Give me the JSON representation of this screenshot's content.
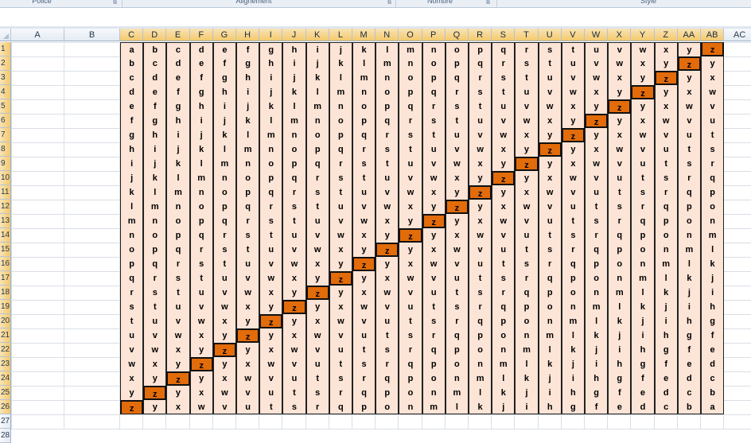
{
  "ribbon": {
    "groups": [
      {
        "label": "Police"
      },
      {
        "label": "Alignement"
      },
      {
        "label": "Nombre"
      },
      {
        "label": "Style"
      }
    ]
  },
  "columns": [
    "A",
    "B",
    "C",
    "D",
    "E",
    "F",
    "G",
    "H",
    "I",
    "J",
    "K",
    "L",
    "M",
    "N",
    "O",
    "P",
    "Q",
    "R",
    "S",
    "T",
    "U",
    "V",
    "W",
    "X",
    "Y",
    "Z",
    "AA",
    "AB",
    "AC"
  ],
  "rows": [
    "1",
    "2",
    "3",
    "4",
    "5",
    "6",
    "7",
    "8",
    "9",
    "10",
    "11",
    "12",
    "13",
    "14",
    "15",
    "16",
    "17",
    "18",
    "19",
    "20",
    "21",
    "22",
    "23",
    "24",
    "25",
    "26",
    "27",
    "28"
  ],
  "selected_rows": [
    "1",
    "2",
    "3",
    "4",
    "5",
    "6",
    "7",
    "8",
    "9",
    "10",
    "11",
    "12",
    "13",
    "14",
    "15",
    "16",
    "17",
    "18",
    "19",
    "20",
    "21",
    "22",
    "23",
    "24",
    "25",
    "26"
  ],
  "selected_columns": [
    "C",
    "D",
    "E",
    "F",
    "G",
    "H",
    "I",
    "J",
    "K",
    "L",
    "M",
    "N",
    "O",
    "P",
    "Q",
    "R",
    "S",
    "T",
    "U",
    "V",
    "W",
    "X",
    "Y",
    "Z",
    "AA",
    "AB"
  ],
  "table": {
    "first_column": "C",
    "rows": [
      [
        "a",
        "b",
        "c",
        "d",
        "e",
        "f",
        "g",
        "h",
        "i",
        "j",
        "k",
        "l",
        "m",
        "n",
        "o",
        "p",
        "q",
        "r",
        "s",
        "t",
        "u",
        "v",
        "w",
        "x",
        "y",
        "z"
      ],
      [
        "b",
        "c",
        "d",
        "e",
        "f",
        "g",
        "h",
        "i",
        "j",
        "k",
        "l",
        "m",
        "n",
        "o",
        "p",
        "q",
        "r",
        "s",
        "t",
        "u",
        "v",
        "w",
        "x",
        "y",
        "z",
        "y"
      ],
      [
        "c",
        "d",
        "e",
        "f",
        "g",
        "h",
        "i",
        "j",
        "k",
        "l",
        "m",
        "n",
        "o",
        "p",
        "q",
        "r",
        "s",
        "t",
        "u",
        "v",
        "w",
        "x",
        "y",
        "z",
        "y",
        "x"
      ],
      [
        "d",
        "e",
        "f",
        "g",
        "h",
        "i",
        "j",
        "k",
        "l",
        "m",
        "n",
        "o",
        "p",
        "q",
        "r",
        "s",
        "t",
        "u",
        "v",
        "w",
        "x",
        "y",
        "z",
        "y",
        "x",
        "w"
      ],
      [
        "e",
        "f",
        "g",
        "h",
        "i",
        "j",
        "k",
        "l",
        "m",
        "n",
        "o",
        "p",
        "q",
        "r",
        "s",
        "t",
        "u",
        "v",
        "w",
        "x",
        "y",
        "z",
        "y",
        "x",
        "w",
        "v"
      ],
      [
        "f",
        "g",
        "h",
        "i",
        "j",
        "k",
        "l",
        "m",
        "n",
        "o",
        "p",
        "q",
        "r",
        "s",
        "t",
        "u",
        "v",
        "w",
        "x",
        "y",
        "z",
        "y",
        "x",
        "w",
        "v",
        "u"
      ],
      [
        "g",
        "h",
        "i",
        "j",
        "k",
        "l",
        "m",
        "n",
        "o",
        "p",
        "q",
        "r",
        "s",
        "t",
        "u",
        "v",
        "w",
        "x",
        "y",
        "z",
        "y",
        "x",
        "w",
        "v",
        "u",
        "t"
      ],
      [
        "h",
        "i",
        "j",
        "k",
        "l",
        "m",
        "n",
        "o",
        "p",
        "q",
        "r",
        "s",
        "t",
        "u",
        "v",
        "w",
        "x",
        "y",
        "z",
        "y",
        "x",
        "w",
        "v",
        "u",
        "t",
        "s"
      ],
      [
        "i",
        "j",
        "k",
        "l",
        "m",
        "n",
        "o",
        "p",
        "q",
        "r",
        "s",
        "t",
        "u",
        "v",
        "w",
        "x",
        "y",
        "z",
        "y",
        "x",
        "w",
        "v",
        "u",
        "t",
        "s",
        "r"
      ],
      [
        "j",
        "k",
        "l",
        "m",
        "n",
        "o",
        "p",
        "q",
        "r",
        "s",
        "t",
        "u",
        "v",
        "w",
        "x",
        "y",
        "z",
        "y",
        "x",
        "w",
        "v",
        "u",
        "t",
        "s",
        "r",
        "q"
      ],
      [
        "k",
        "l",
        "m",
        "n",
        "o",
        "p",
        "q",
        "r",
        "s",
        "t",
        "u",
        "v",
        "w",
        "x",
        "y",
        "z",
        "y",
        "x",
        "w",
        "v",
        "u",
        "t",
        "s",
        "r",
        "q",
        "p"
      ],
      [
        "l",
        "m",
        "n",
        "o",
        "p",
        "q",
        "r",
        "s",
        "t",
        "u",
        "v",
        "w",
        "x",
        "y",
        "z",
        "y",
        "x",
        "w",
        "v",
        "u",
        "t",
        "s",
        "r",
        "q",
        "p",
        "o"
      ],
      [
        "m",
        "n",
        "o",
        "p",
        "q",
        "r",
        "s",
        "t",
        "u",
        "v",
        "w",
        "x",
        "y",
        "z",
        "y",
        "x",
        "w",
        "v",
        "u",
        "t",
        "s",
        "r",
        "q",
        "p",
        "o",
        "n"
      ],
      [
        "n",
        "o",
        "p",
        "q",
        "r",
        "s",
        "t",
        "u",
        "v",
        "w",
        "x",
        "y",
        "z",
        "y",
        "x",
        "w",
        "v",
        "u",
        "t",
        "s",
        "r",
        "q",
        "p",
        "o",
        "n",
        "m"
      ],
      [
        "o",
        "p",
        "q",
        "r",
        "s",
        "t",
        "u",
        "v",
        "w",
        "x",
        "y",
        "z",
        "y",
        "x",
        "w",
        "v",
        "u",
        "t",
        "s",
        "r",
        "q",
        "p",
        "o",
        "n",
        "m",
        "l"
      ],
      [
        "p",
        "q",
        "r",
        "s",
        "t",
        "u",
        "v",
        "w",
        "x",
        "y",
        "z",
        "y",
        "x",
        "w",
        "v",
        "u",
        "t",
        "s",
        "r",
        "q",
        "p",
        "o",
        "n",
        "m",
        "l",
        "k"
      ],
      [
        "q",
        "r",
        "s",
        "t",
        "u",
        "v",
        "w",
        "x",
        "y",
        "z",
        "y",
        "x",
        "w",
        "v",
        "u",
        "t",
        "s",
        "r",
        "q",
        "p",
        "o",
        "n",
        "m",
        "l",
        "k",
        "j"
      ],
      [
        "r",
        "s",
        "t",
        "u",
        "v",
        "w",
        "x",
        "y",
        "z",
        "y",
        "x",
        "w",
        "v",
        "u",
        "t",
        "s",
        "r",
        "q",
        "p",
        "o",
        "n",
        "m",
        "l",
        "k",
        "j",
        "i"
      ],
      [
        "s",
        "t",
        "u",
        "v",
        "w",
        "x",
        "y",
        "z",
        "y",
        "x",
        "w",
        "v",
        "u",
        "t",
        "s",
        "r",
        "q",
        "p",
        "o",
        "n",
        "m",
        "l",
        "k",
        "j",
        "i",
        "h"
      ],
      [
        "t",
        "u",
        "v",
        "w",
        "x",
        "y",
        "z",
        "y",
        "x",
        "w",
        "v",
        "u",
        "t",
        "s",
        "r",
        "q",
        "p",
        "o",
        "n",
        "m",
        "l",
        "k",
        "j",
        "i",
        "h",
        "g"
      ],
      [
        "u",
        "v",
        "w",
        "x",
        "y",
        "z",
        "y",
        "x",
        "w",
        "v",
        "u",
        "t",
        "s",
        "r",
        "q",
        "p",
        "o",
        "n",
        "m",
        "l",
        "k",
        "j",
        "i",
        "h",
        "g",
        "f"
      ],
      [
        "v",
        "w",
        "x",
        "y",
        "z",
        "y",
        "x",
        "w",
        "v",
        "u",
        "t",
        "s",
        "r",
        "q",
        "p",
        "o",
        "n",
        "m",
        "l",
        "k",
        "j",
        "i",
        "h",
        "g",
        "f",
        "e"
      ],
      [
        "w",
        "x",
        "y",
        "z",
        "y",
        "x",
        "w",
        "v",
        "u",
        "t",
        "s",
        "r",
        "q",
        "p",
        "o",
        "n",
        "m",
        "l",
        "k",
        "j",
        "i",
        "h",
        "g",
        "f",
        "e",
        "d"
      ],
      [
        "x",
        "y",
        "z",
        "y",
        "x",
        "w",
        "v",
        "u",
        "t",
        "s",
        "r",
        "q",
        "p",
        "o",
        "n",
        "m",
        "l",
        "k",
        "j",
        "i",
        "h",
        "g",
        "f",
        "e",
        "d",
        "c"
      ],
      [
        "y",
        "z",
        "y",
        "x",
        "w",
        "v",
        "u",
        "t",
        "s",
        "r",
        "q",
        "p",
        "o",
        "n",
        "m",
        "l",
        "k",
        "j",
        "i",
        "h",
        "g",
        "f",
        "e",
        "d",
        "c",
        "b"
      ],
      [
        "z",
        "y",
        "x",
        "w",
        "v",
        "u",
        "t",
        "s",
        "r",
        "q",
        "p",
        "o",
        "n",
        "m",
        "l",
        "k",
        "j",
        "i",
        "h",
        "g",
        "f",
        "e",
        "d",
        "c",
        "b",
        "a"
      ]
    ],
    "highlight_letter": "z"
  },
  "colors": {
    "cell_fill": "#fce4d6",
    "highlight_fill": "#e26b0a",
    "header_selected": "#f3c96c"
  }
}
